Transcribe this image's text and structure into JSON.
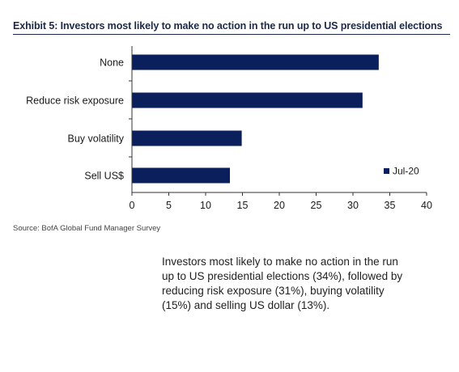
{
  "header": {
    "title": "Exhibit 5: Investors most likely to make no action in the run up to US presidential elections"
  },
  "chart_data": {
    "type": "bar",
    "orientation": "horizontal",
    "title": "Exhibit 5: Investors most likely to make no action in the run up to US presidential elections",
    "categories": [
      "None",
      "Reduce risk exposure",
      "Buy volatility",
      "Sell US$"
    ],
    "series": [
      {
        "name": "Jul-20",
        "values": [
          33.5,
          31.3,
          14.9,
          13.3
        ],
        "color": "#0a1f5c"
      }
    ],
    "xlim": [
      0,
      40
    ],
    "xticks": [
      "0",
      "5",
      "10",
      "15",
      "20",
      "25",
      "30",
      "35",
      "40"
    ],
    "xlabel": "",
    "ylabel": "",
    "grid": false,
    "legend_position": "right"
  },
  "source": "Source: BofA Global Fund Manager Survey",
  "caption": "Investors most likely to make no action in the run up to US presidential elections (34%), followed by reducing risk exposure (31%), buying volatility (15%) and selling US dollar (13%).",
  "colors": {
    "bar": "#0a1f5c",
    "title": "#1b2a4a",
    "axis": "#333333"
  }
}
